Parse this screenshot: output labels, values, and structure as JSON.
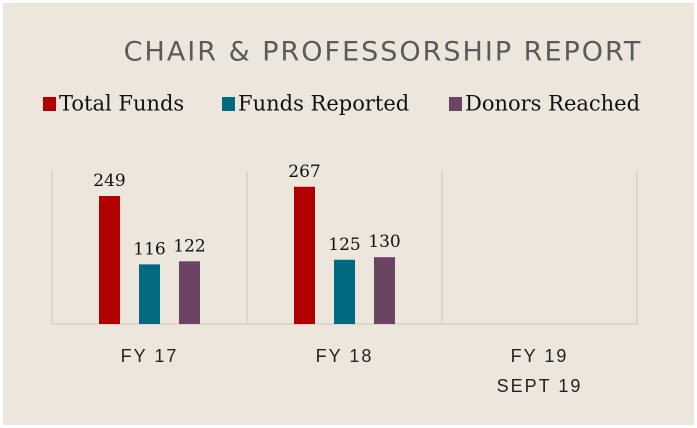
{
  "chart_data": {
    "type": "bar",
    "title": "CHAIR & PROFESSORSHIP REPORT",
    "categories": [
      "FY 17",
      "FY 18",
      "FY 19\nSEPT 19"
    ],
    "series": [
      {
        "name": "Total Funds",
        "color": "#b20000",
        "values": [
          249,
          267,
          null
        ]
      },
      {
        "name": "Funds Reported",
        "color": "#006a80",
        "values": [
          116,
          125,
          null
        ]
      },
      {
        "name": "Donors Reached",
        "color": "#6a4460",
        "values": [
          122,
          130,
          null
        ]
      }
    ]
  }
}
